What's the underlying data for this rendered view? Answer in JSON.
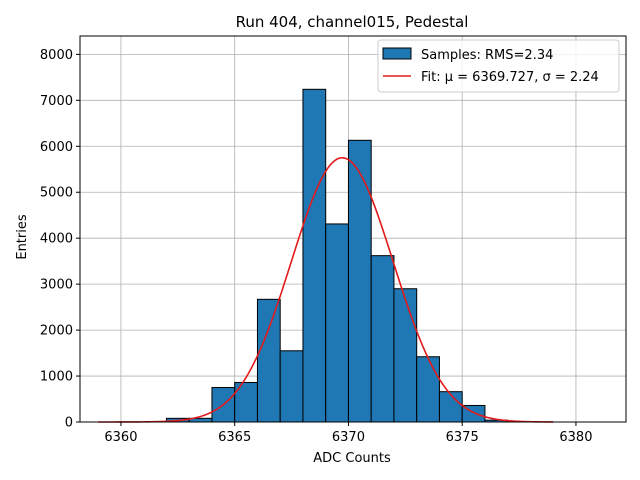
{
  "chart_data": {
    "type": "bar",
    "title": "Run 404, channel015, Pedestal",
    "xlabel": "ADC Counts",
    "ylabel": "Entries",
    "xlim": [
      6358.2,
      6382.2
    ],
    "ylim": [
      0,
      8400
    ],
    "xticks": [
      6360,
      6365,
      6370,
      6375,
      6380
    ],
    "yticks": [
      0,
      1000,
      2000,
      3000,
      4000,
      5000,
      6000,
      7000,
      8000
    ],
    "grid": true,
    "legend_position": "top-right",
    "bin_width": 1,
    "bins": [
      {
        "x": 6362,
        "value": 80
      },
      {
        "x": 6363,
        "value": 80
      },
      {
        "x": 6364,
        "value": 750
      },
      {
        "x": 6365,
        "value": 860
      },
      {
        "x": 6366,
        "value": 2670
      },
      {
        "x": 6367,
        "value": 1550
      },
      {
        "x": 6368,
        "value": 7240
      },
      {
        "x": 6369,
        "value": 4310
      },
      {
        "x": 6370,
        "value": 6130
      },
      {
        "x": 6371,
        "value": 3620
      },
      {
        "x": 6372,
        "value": 2900
      },
      {
        "x": 6373,
        "value": 1420
      },
      {
        "x": 6374,
        "value": 660
      },
      {
        "x": 6375,
        "value": 360
      },
      {
        "x": 6376,
        "value": 40
      }
    ],
    "fit": {
      "mu": 6369.727,
      "sigma": 2.24,
      "amplitude": 5750,
      "x_range": [
        6359,
        6379
      ]
    },
    "series": [
      {
        "name": "Samples: RMS=2.34",
        "kind": "histogram",
        "color": "#1f77b4"
      },
      {
        "name": "Fit: μ = 6369.727, σ = 2.24",
        "kind": "line",
        "color": "#e31a1c"
      }
    ]
  }
}
